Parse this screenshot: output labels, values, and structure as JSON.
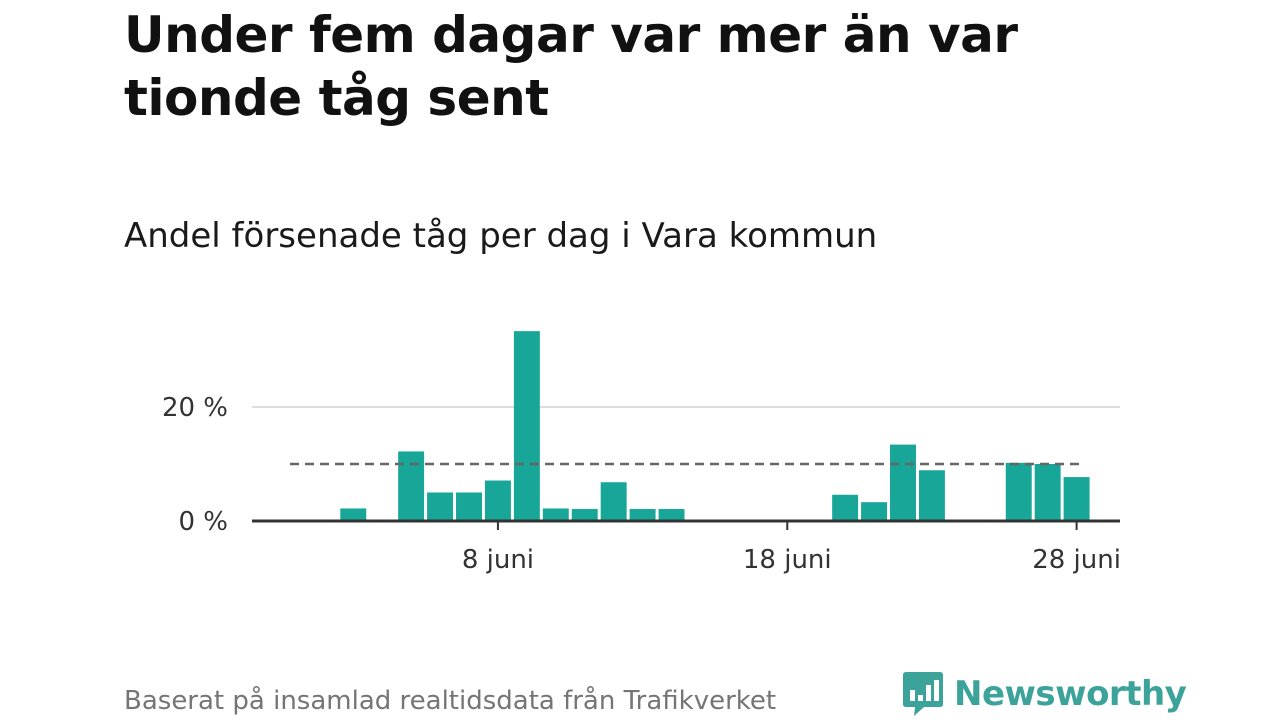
{
  "headline": "Under fem dagar var mer än var tionde tåg sent",
  "subtitle": "Andel försenade tåg per dag i Vara kommun",
  "source": "Baserat på insamlad realtidsdata från Trafikverket",
  "brand": {
    "name": "Newsworthy",
    "icon": "newsworthy-logo-icon"
  },
  "colors": {
    "bar": "#17a697",
    "reference": "#666666",
    "axis": "#333333",
    "grid": "#dddddd",
    "brand": "#3ca39a"
  },
  "chart_data": {
    "type": "bar",
    "title": "Andel försenade tåg per dag i Vara kommun",
    "x_axis": {
      "type": "date",
      "range": [
        "2024-05-31",
        "2024-06-29"
      ],
      "ticks": [
        {
          "x": "2024-06-08",
          "label": "8 juni"
        },
        {
          "x": "2024-06-18",
          "label": "18 juni"
        },
        {
          "x": "2024-06-28",
          "label": "28 juni"
        }
      ]
    },
    "y_axis": {
      "range": [
        0,
        33.5
      ],
      "ticks": [
        {
          "y": 0,
          "label": "0 %"
        },
        {
          "y": 20,
          "label": "20 %"
        }
      ]
    },
    "grid": true,
    "reference_line": {
      "value": 10,
      "style": "dashed"
    },
    "series": [
      {
        "values": [
          {
            "x": "2024-06-03",
            "y": 2.2
          },
          {
            "x": "2024-06-05",
            "y": 12.2
          },
          {
            "x": "2024-06-06",
            "y": 5.0
          },
          {
            "x": "2024-06-07",
            "y": 5.0
          },
          {
            "x": "2024-06-08",
            "y": 7.1
          },
          {
            "x": "2024-06-09",
            "y": 33.3
          },
          {
            "x": "2024-06-10",
            "y": 2.2
          },
          {
            "x": "2024-06-11",
            "y": 2.1
          },
          {
            "x": "2024-06-12",
            "y": 6.8
          },
          {
            "x": "2024-06-13",
            "y": 2.1
          },
          {
            "x": "2024-06-14",
            "y": 2.1
          },
          {
            "x": "2024-06-20",
            "y": 4.6
          },
          {
            "x": "2024-06-21",
            "y": 3.3
          },
          {
            "x": "2024-06-22",
            "y": 13.4
          },
          {
            "x": "2024-06-23",
            "y": 8.9
          },
          {
            "x": "2024-06-26",
            "y": 10.2
          },
          {
            "x": "2024-06-27",
            "y": 10.0
          },
          {
            "x": "2024-06-28",
            "y": 7.7
          }
        ]
      }
    ]
  }
}
